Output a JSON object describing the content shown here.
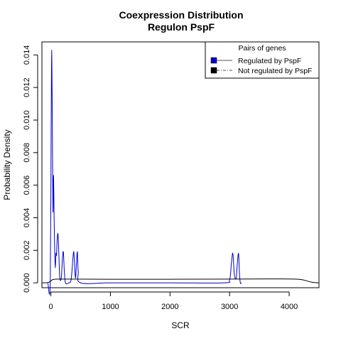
{
  "chart_data": {
    "type": "line",
    "title": "Coexpression Distribution",
    "subtitle": "Regulon PspF",
    "xlabel": "SCR",
    "ylabel": "Probability Density",
    "xlim": [
      -150,
      4500
    ],
    "ylim": [
      -0.0003,
      0.0148
    ],
    "x_ticks": [
      0,
      1000,
      2000,
      3000,
      4000
    ],
    "x_tick_labels": [
      "0",
      "1000",
      "2000",
      "3000",
      "4000"
    ],
    "y_ticks": [
      0.0,
      0.002,
      0.004,
      0.006,
      0.008,
      0.01,
      0.012,
      0.014
    ],
    "y_tick_labels": [
      "0.000",
      "0.002",
      "0.004",
      "0.006",
      "0.008",
      "0.010",
      "0.012",
      "0.014"
    ],
    "grid": false,
    "legend": {
      "title": "Pairs of genes",
      "placement": "top-right",
      "entries": [
        "Regulated by  PspF",
        "Not regulated by  PspF"
      ]
    },
    "series": [
      {
        "name": "Regulated by  PspF",
        "color": "#0000cc",
        "line_style": "solid",
        "x": [
          -50,
          -10,
          5,
          15,
          25,
          35,
          45,
          55,
          65,
          75,
          85,
          95,
          105,
          120,
          135,
          150,
          175,
          195,
          210,
          225,
          245,
          300,
          340,
          370,
          385,
          400,
          415,
          430,
          445,
          460,
          500,
          1000,
          2000,
          2900,
          3000,
          3030,
          3055,
          3080,
          3110,
          3130,
          3150,
          3165,
          3180,
          3200
        ],
        "values": [
          0,
          0,
          0.0095,
          0.0143,
          0.0095,
          0.0044,
          0.0066,
          0.004,
          0.0018,
          0.0009,
          0.0018,
          0.0017,
          0.0026,
          0.003,
          0.0017,
          0.0003,
          0.0003,
          0.0015,
          0.0019,
          0.0008,
          0,
          0,
          0.0002,
          0.0015,
          0.0019,
          0.001,
          0.0003,
          0.0012,
          0.0019,
          0.0007,
          0,
          0,
          0,
          0,
          0.0002,
          0.0012,
          0.0018,
          0.0005,
          0.0003,
          0.0012,
          0.0018,
          0.0006,
          0,
          0
        ]
      },
      {
        "name": "Not regulated by  PspF",
        "color": "#000000",
        "line_style": "dashdot",
        "x": [
          -150,
          -60,
          -10,
          20,
          60,
          120,
          200,
          400,
          1000,
          2000,
          3000,
          3600,
          3900,
          4100,
          4200,
          4270,
          4320,
          4380,
          4450,
          4500
        ],
        "values": [
          0,
          1e-05,
          8e-05,
          0.00018,
          0.00022,
          0.00023,
          0.00023,
          0.00023,
          0.00022,
          0.00022,
          0.00023,
          0.00024,
          0.00024,
          0.00023,
          0.0002,
          0.00015,
          9e-05,
          4e-05,
          1e-05,
          0
        ]
      }
    ]
  }
}
